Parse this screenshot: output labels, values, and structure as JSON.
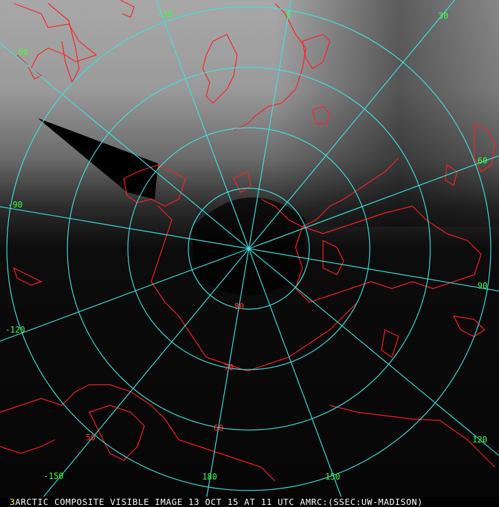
{
  "caption": {
    "frame_number": "3",
    "text": "ARCTIC COMPOSITE VISIBLE IMAGE 13 OCT 15 AT 11 UTC AMRC:(SSEC:UW-MADISON)"
  },
  "map": {
    "projection": "polar stereographic",
    "grid_color": "#40e0e0",
    "coastline_color": "#ff2020",
    "longitude_label_color": "#40ff40",
    "latitude_label_color": "#ff3030",
    "longitude_lines": [
      -150,
      -120,
      -90,
      -60,
      -30,
      0,
      30,
      60,
      90,
      120,
      150,
      180
    ],
    "longitude_labels": [
      {
        "value": -60,
        "text": "-60"
      },
      {
        "value": -30,
        "text": "-30"
      },
      {
        "value": 0,
        "text": "0"
      },
      {
        "value": 30,
        "text": "30"
      },
      {
        "value": 60,
        "text": "60"
      },
      {
        "value": 90,
        "text": "90"
      },
      {
        "value": 120,
        "text": "120"
      },
      {
        "value": 150,
        "text": "150"
      },
      {
        "value": 180,
        "text": "180"
      },
      {
        "value": -150,
        "text": "-150"
      },
      {
        "value": -120,
        "text": "-120"
      },
      {
        "value": -90,
        "text": "-90"
      }
    ],
    "latitude_circles": [
      80,
      70,
      60,
      50
    ],
    "latitude_labels": [
      {
        "value": 80,
        "text": "80"
      },
      {
        "value": 70,
        "text": "70"
      },
      {
        "value": 60,
        "text": "60"
      },
      {
        "value": 50,
        "text": "50"
      }
    ]
  }
}
